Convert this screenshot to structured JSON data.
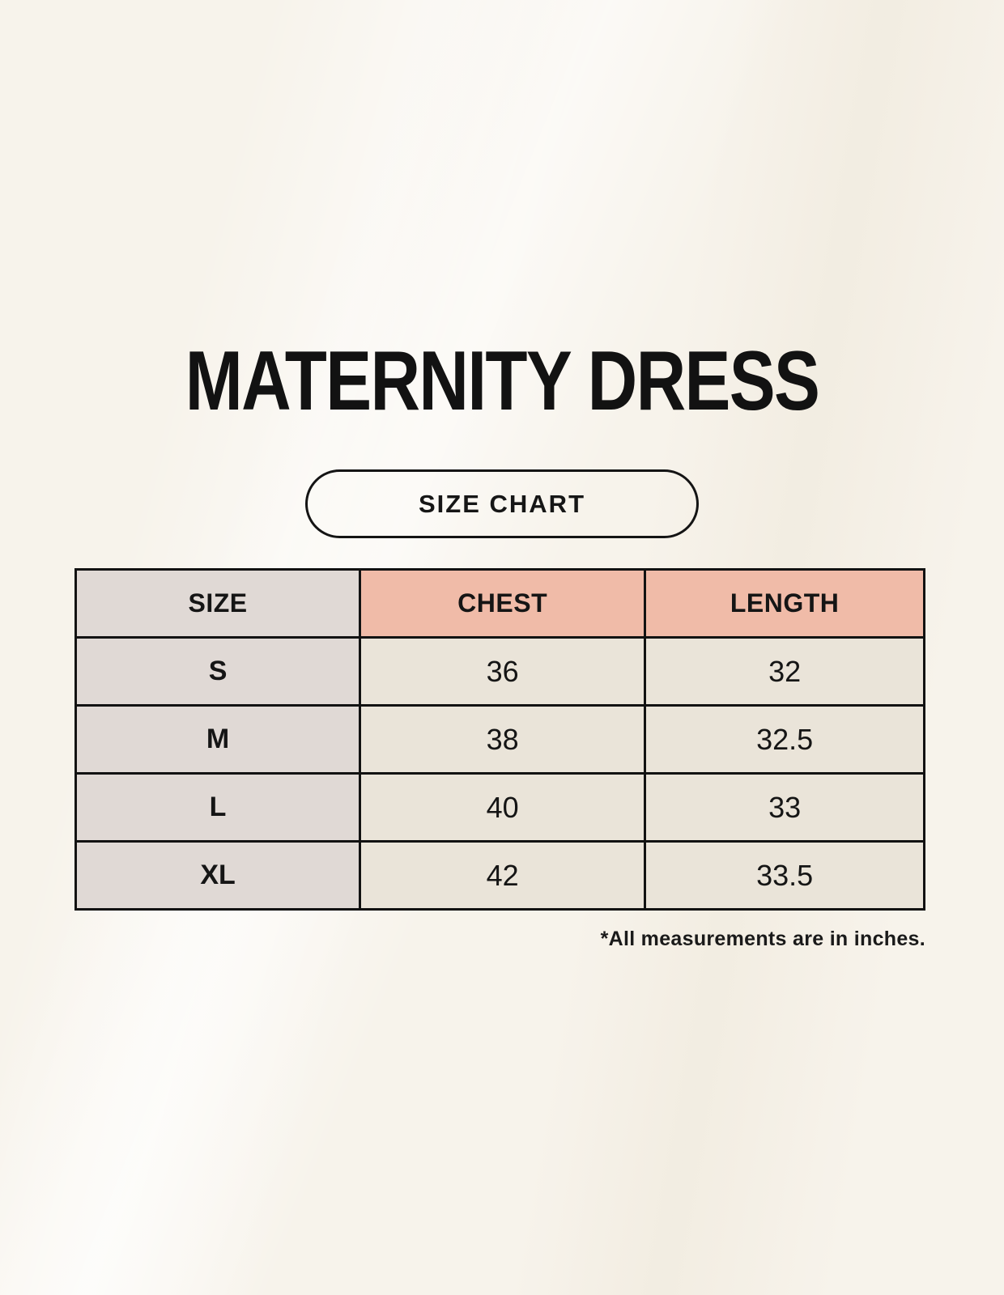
{
  "page": {
    "title": "MATERNITY DRESS",
    "badge_label": "SIZE CHART"
  },
  "table": {
    "columns": [
      "SIZE",
      "CHEST",
      "LENGTH"
    ],
    "rows": [
      {
        "size": "S",
        "chest": "36",
        "length": "32"
      },
      {
        "size": "M",
        "chest": "38",
        "length": "32.5"
      },
      {
        "size": "L",
        "chest": "40",
        "length": "33"
      },
      {
        "size": "XL",
        "chest": "42",
        "length": "33.5"
      }
    ]
  },
  "footnote": "*All measurements are in inches.",
  "colors": {
    "background": "#f7f3eb",
    "header_accent": "#f0bba8",
    "size_column": "#e0d9d5",
    "value_cell": "#eae4d9",
    "border": "#121212",
    "text": "#151515"
  },
  "units": "inches"
}
